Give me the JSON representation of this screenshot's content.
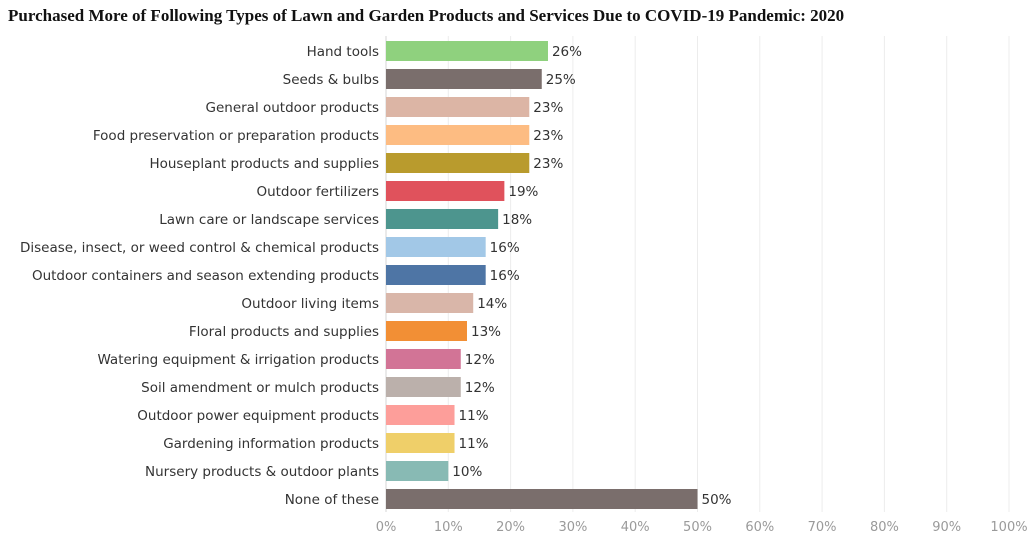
{
  "chart_data": {
    "type": "bar",
    "orientation": "horizontal",
    "title": "Purchased More of Following Types of Lawn and Garden Products and Services Due to COVID-19 Pandemic: 2020",
    "xlabel": "",
    "ylabel": "",
    "xlim": [
      0,
      100
    ],
    "grid": true,
    "ticks": [
      {
        "value": 0,
        "label": "0%"
      },
      {
        "value": 10,
        "label": "10%"
      },
      {
        "value": 20,
        "label": "20%"
      },
      {
        "value": 30,
        "label": "30%"
      },
      {
        "value": 40,
        "label": "40%"
      },
      {
        "value": 50,
        "label": "50%"
      },
      {
        "value": 60,
        "label": "60%"
      },
      {
        "value": 70,
        "label": "70%"
      },
      {
        "value": 80,
        "label": "80%"
      },
      {
        "value": 90,
        "label": "90%"
      },
      {
        "value": 100,
        "label": "100%"
      }
    ],
    "bars": [
      {
        "category": "Hand tools",
        "value": 26,
        "label": "26%",
        "color": "#8fd17e"
      },
      {
        "category": "Seeds & bulbs",
        "value": 25,
        "label": "25%",
        "color": "#7a6e6c"
      },
      {
        "category": "General outdoor products",
        "value": 23,
        "label": "23%",
        "color": "#dcb5a5"
      },
      {
        "category": "Food preservation or preparation products",
        "value": 23,
        "label": "23%",
        "color": "#fdbc82"
      },
      {
        "category": "Houseplant products and supplies",
        "value": 23,
        "label": "23%",
        "color": "#b99b2d"
      },
      {
        "category": "Outdoor fertilizers",
        "value": 19,
        "label": "19%",
        "color": "#e0525c"
      },
      {
        "category": "Lawn care or landscape services",
        "value": 18,
        "label": "18%",
        "color": "#4d958e"
      },
      {
        "category": "Disease, insect, or weed control & chemical products",
        "value": 16,
        "label": "16%",
        "color": "#a2c8e7"
      },
      {
        "category": "Outdoor containers and season extending products",
        "value": 16,
        "label": "16%",
        "color": "#4e75a5"
      },
      {
        "category": "Outdoor living items",
        "value": 14,
        "label": "14%",
        "color": "#d9b6a9"
      },
      {
        "category": "Floral products and supplies",
        "value": 13,
        "label": "13%",
        "color": "#f28f35"
      },
      {
        "category": "Watering equipment & irrigation products",
        "value": 12,
        "label": "12%",
        "color": "#d27496"
      },
      {
        "category": "Soil amendment or mulch products",
        "value": 12,
        "label": "12%",
        "color": "#bbb0ab"
      },
      {
        "category": "Outdoor power equipment products",
        "value": 11,
        "label": "11%",
        "color": "#fd9e9a"
      },
      {
        "category": "Gardening information products",
        "value": 11,
        "label": "11%",
        "color": "#efcf69"
      },
      {
        "category": "Nursery products & outdoor plants",
        "value": 10,
        "label": "10%",
        "color": "#88bab4"
      },
      {
        "category": "None of these",
        "value": 50,
        "label": "50%",
        "color": "#7a6e6c"
      }
    ]
  }
}
